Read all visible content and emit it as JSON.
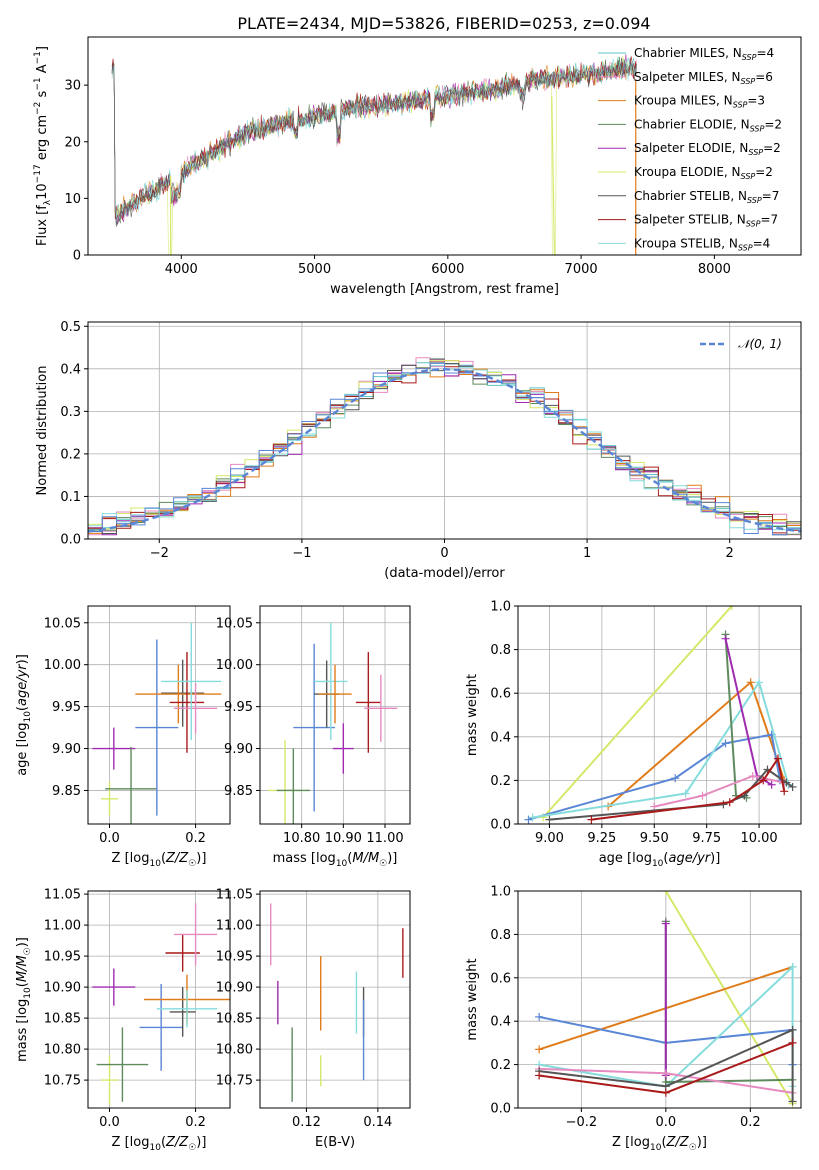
{
  "title": "PLATE=2434, MJD=53826, FIBERID=0253, z=0.094",
  "colors": {
    "Chabrier MILES": "#5cc5c5",
    "Salpeter MILES": "#e58ac0",
    "Kroupa MILES": "#e07c1a",
    "Chabrier ELODIE": "#5e8a5e",
    "Salpeter ELODIE": "#a02ab0",
    "Kroupa ELODIE": "#d6e86a",
    "Chabrier STELIB": "#555555",
    "Salpeter STELIB": "#aa1a1a",
    "Kroupa STELIB": "#86dcdc",
    "Blue extra": "#5a86d6"
  },
  "chart_data": [
    {
      "id": "spectrum",
      "type": "line",
      "title": "PLATE=2434, MJD=53826, FIBERID=0253, z=0.094",
      "xlabel": "wavelength [Angstrom, rest frame]",
      "ylabel": "Flux [f_λ 10^-17 erg cm^-2 s^-1 A^-1]",
      "xlim": [
        3300,
        8650
      ],
      "ylim": [
        0,
        38.5
      ],
      "xticks": [
        4000,
        5000,
        6000,
        7000,
        8000
      ],
      "yticks": [
        0,
        10,
        20,
        30
      ],
      "legend_position": "top-right",
      "legend": [
        {
          "label": "Chabrier MILES",
          "nssp": "4",
          "color": "#5cc5c5"
        },
        {
          "label": "Salpeter MILES",
          "nssp": "6",
          "color": "#e58ac0"
        },
        {
          "label": "Kroupa MILES",
          "nssp": "3",
          "color": "#e07c1a"
        },
        {
          "label": "Chabrier ELODIE",
          "nssp": "2",
          "color": "#5e8a5e"
        },
        {
          "label": "Salpeter ELODIE",
          "nssp": "2",
          "color": "#a02ab0"
        },
        {
          "label": "Kroupa ELODIE",
          "nssp": "2",
          "color": "#d6e86a"
        },
        {
          "label": "Chabrier STELIB",
          "nssp": "7",
          "color": "#555555"
        },
        {
          "label": "Salpeter STELIB",
          "nssp": "7",
          "color": "#aa1a1a"
        },
        {
          "label": "Kroupa STELIB",
          "nssp": "4",
          "color": "#86dcdc"
        }
      ],
      "continuum": {
        "x": [
          3500,
          3700,
          3900,
          4100,
          4300,
          4500,
          4700,
          4900,
          5100,
          5300,
          5500,
          5700,
          5900,
          6100,
          6300,
          6500,
          6700,
          6900,
          7100,
          7300,
          7400
        ],
        "y": [
          7,
          10,
          13,
          16,
          19,
          21.5,
          23,
          24,
          25,
          26,
          26.5,
          27,
          28,
          28.5,
          29,
          30,
          31,
          31.5,
          32,
          33,
          33
        ]
      },
      "features": [
        {
          "series": "Kroupa ELODIE",
          "x": [
            3920,
            3920
          ],
          "y": [
            0,
            14
          ],
          "desc": "drop near 3900"
        },
        {
          "series": "Kroupa ELODIE",
          "x": [
            6780,
            6800
          ],
          "y": [
            28,
            0
          ],
          "desc": "drop near 6790"
        },
        {
          "series": "Kroupa MILES",
          "x": [
            7410,
            7410
          ],
          "y": [
            31,
            0
          ],
          "desc": "cutoff near 7410"
        }
      ]
    },
    {
      "id": "residuals",
      "type": "histogram",
      "xlabel": "(data-model)/error",
      "ylabel": "Normed distribution",
      "xlim": [
        -2.5,
        2.5
      ],
      "ylim": [
        0,
        0.51
      ],
      "xticks": [
        -2,
        -1,
        0,
        1,
        2
      ],
      "yticks": [
        0.0,
        0.1,
        0.2,
        0.3,
        0.4,
        0.5
      ],
      "reference_curve": {
        "label": "𝒩(0, 1)",
        "color": "#5a86d6",
        "style": "dashed"
      },
      "bin_width": 0.1,
      "bin_start": -2.5,
      "series": [
        {
          "name": "Chabrier MILES",
          "color": "#5cc5c5",
          "offset": 0.0
        },
        {
          "name": "Salpeter MILES",
          "color": "#e58ac0",
          "offset": 0.02
        },
        {
          "name": "Kroupa MILES",
          "color": "#e07c1a",
          "offset": -0.02
        },
        {
          "name": "Chabrier ELODIE",
          "color": "#5e8a5e",
          "offset": 0.01
        },
        {
          "name": "Salpeter ELODIE",
          "color": "#a02ab0",
          "offset": -0.01
        },
        {
          "name": "Kroupa ELODIE",
          "color": "#d6e86a",
          "offset": 0.015
        },
        {
          "name": "Chabrier STELIB",
          "color": "#555555",
          "offset": -0.015
        },
        {
          "name": "Salpeter STELIB",
          "color": "#aa1a1a",
          "offset": 0.005
        },
        {
          "name": "Kroupa STELIB",
          "color": "#86dcdc",
          "offset": -0.005
        },
        {
          "name": "",
          "color": "#5a86d6",
          "offset": 0.025
        }
      ]
    },
    {
      "id": "age_vs_Z",
      "type": "errorbar",
      "xlabel": "Z [log10(Z/Z☉)]",
      "ylabel": "age [log10(age/yr)]",
      "xlim": [
        -0.05,
        0.28
      ],
      "ylim": [
        9.81,
        10.07
      ],
      "xticks": [
        0.0,
        0.2
      ],
      "yticks": [
        9.85,
        9.9,
        9.95,
        10.0,
        10.05
      ],
      "points": [
        {
          "x": 0.0,
          "y": 9.84,
          "xerr": 0.02,
          "yerr": 0.02,
          "color": "#d6e86a"
        },
        {
          "x": 0.01,
          "y": 9.9,
          "xerr": 0.05,
          "yerr": 0.025,
          "color": "#a02ab0"
        },
        {
          "x": 0.05,
          "y": 9.852,
          "xerr": 0.06,
          "yerr": 0.05,
          "color": "#5e8a5e"
        },
        {
          "x": 0.11,
          "y": 9.925,
          "xerr": 0.05,
          "yerr": 0.105,
          "color": "#5a86d6"
        },
        {
          "x": 0.17,
          "y": 9.966,
          "xerr": 0.05,
          "yerr": 0.04,
          "color": "#555555"
        },
        {
          "x": 0.16,
          "y": 9.965,
          "xerr": 0.1,
          "yerr": 0.035,
          "color": "#e07c1a"
        },
        {
          "x": 0.18,
          "y": 9.955,
          "xerr": 0.04,
          "yerr": 0.06,
          "color": "#aa1a1a"
        },
        {
          "x": 0.2,
          "y": 9.948,
          "xerr": 0.05,
          "yerr": 0.03,
          "color": "#e58ac0"
        },
        {
          "x": 0.19,
          "y": 9.98,
          "xerr": 0.07,
          "yerr": 0.07,
          "color": "#86dcdc"
        }
      ]
    },
    {
      "id": "age_vs_mass",
      "type": "errorbar",
      "xlabel": "mass [log10(M/M☉)]",
      "ylabel": "",
      "xlim": [
        10.7,
        11.06
      ],
      "ylim": [
        9.81,
        10.07
      ],
      "xticks": [
        10.8,
        10.9,
        11.0
      ],
      "yticks": [
        9.85,
        9.9,
        9.95,
        10.0,
        10.05
      ],
      "points": [
        {
          "x": 10.76,
          "y": 9.85,
          "xerr": 0.04,
          "yerr": 0.06,
          "color": "#d6e86a"
        },
        {
          "x": 10.78,
          "y": 9.85,
          "xerr": 0.04,
          "yerr": 0.05,
          "color": "#5e8a5e"
        },
        {
          "x": 10.83,
          "y": 9.925,
          "xerr": 0.05,
          "yerr": 0.1,
          "color": "#5a86d6"
        },
        {
          "x": 10.86,
          "y": 9.965,
          "xerr": 0.03,
          "yerr": 0.04,
          "color": "#555555"
        },
        {
          "x": 10.87,
          "y": 9.98,
          "xerr": 0.04,
          "yerr": 0.07,
          "color": "#86dcdc"
        },
        {
          "x": 10.88,
          "y": 9.965,
          "xerr": 0.04,
          "yerr": 0.035,
          "color": "#e07c1a"
        },
        {
          "x": 10.9,
          "y": 9.9,
          "xerr": 0.025,
          "yerr": 0.03,
          "color": "#a02ab0"
        },
        {
          "x": 10.96,
          "y": 9.955,
          "xerr": 0.03,
          "yerr": 0.06,
          "color": "#aa1a1a"
        },
        {
          "x": 10.99,
          "y": 9.948,
          "xerr": 0.04,
          "yerr": 0.04,
          "color": "#e58ac0"
        }
      ]
    },
    {
      "id": "weight_vs_age",
      "type": "line",
      "xlabel": "age [log10(age/yr)]",
      "ylabel": "mass weight",
      "xlim": [
        8.85,
        10.2
      ],
      "ylim": [
        0,
        1
      ],
      "xticks": [
        9.0,
        9.25,
        9.5,
        9.75,
        10.0
      ],
      "yticks": [
        0.0,
        0.2,
        0.4,
        0.6,
        0.8,
        1.0
      ],
      "series": [
        {
          "color": "#d6e86a",
          "x": [
            8.97,
            9.87,
            9.9
          ],
          "y": [
            0.03,
            1.0,
            1.05
          ]
        },
        {
          "color": "#e07c1a",
          "x": [
            9.28,
            9.96,
            10.12
          ],
          "y": [
            0.08,
            0.65,
            0.2
          ]
        },
        {
          "color": "#5a86d6",
          "x": [
            8.9,
            9.6,
            9.84,
            10.06,
            10.1
          ],
          "y": [
            0.02,
            0.21,
            0.37,
            0.41,
            0.2
          ]
        },
        {
          "color": "#86dcdc",
          "x": [
            8.92,
            9.65,
            10.0,
            10.14
          ],
          "y": [
            0.03,
            0.14,
            0.65,
            0.18
          ]
        },
        {
          "color": "#5e8a5e",
          "x": [
            9.84,
            9.89,
            9.94
          ],
          "y": [
            0.87,
            0.13,
            0.12
          ]
        },
        {
          "color": "#a02ab0",
          "x": [
            9.84,
            9.99,
            10.06
          ],
          "y": [
            0.85,
            0.22,
            0.18
          ]
        },
        {
          "color": "#e58ac0",
          "x": [
            9.5,
            9.73,
            9.97,
            10.12
          ],
          "y": [
            0.08,
            0.13,
            0.22,
            0.19
          ]
        },
        {
          "color": "#555555",
          "x": [
            9.0,
            9.83,
            9.93,
            10.04,
            10.13,
            10.16
          ],
          "y": [
            0.02,
            0.09,
            0.13,
            0.25,
            0.19,
            0.17
          ]
        },
        {
          "color": "#aa1a1a",
          "x": [
            9.2,
            9.86,
            10.02,
            10.09,
            10.12
          ],
          "y": [
            0.02,
            0.1,
            0.2,
            0.3,
            0.15
          ]
        }
      ]
    },
    {
      "id": "mass_vs_Z",
      "type": "errorbar",
      "xlabel": "Z [log10(Z/Z☉)]",
      "ylabel": "mass [log10(M/M☉)]",
      "xlim": [
        -0.05,
        0.28
      ],
      "ylim": [
        10.705,
        11.055
      ],
      "xticks": [
        0.0,
        0.2
      ],
      "yticks": [
        10.75,
        10.8,
        10.85,
        10.9,
        10.95,
        11.0,
        11.05
      ],
      "points": [
        {
          "x": 0.0,
          "y": 10.75,
          "xerr": 0.02,
          "yerr": 0.04,
          "color": "#d6e86a"
        },
        {
          "x": 0.01,
          "y": 10.9,
          "xerr": 0.05,
          "yerr": 0.03,
          "color": "#a02ab0"
        },
        {
          "x": 0.03,
          "y": 10.775,
          "xerr": 0.06,
          "yerr": 0.06,
          "color": "#5e8a5e"
        },
        {
          "x": 0.12,
          "y": 10.835,
          "xerr": 0.05,
          "yerr": 0.07,
          "color": "#5a86d6"
        },
        {
          "x": 0.17,
          "y": 10.86,
          "xerr": 0.03,
          "yerr": 0.04,
          "color": "#555555"
        },
        {
          "x": 0.18,
          "y": 10.88,
          "xerr": 0.1,
          "yerr": 0.04,
          "color": "#e07c1a"
        },
        {
          "x": 0.17,
          "y": 10.955,
          "xerr": 0.04,
          "yerr": 0.03,
          "color": "#aa1a1a"
        },
        {
          "x": 0.2,
          "y": 10.985,
          "xerr": 0.05,
          "yerr": 0.05,
          "color": "#e58ac0"
        },
        {
          "x": 0.18,
          "y": 10.865,
          "xerr": 0.07,
          "yerr": 0.03,
          "color": "#86dcdc"
        }
      ]
    },
    {
      "id": "mass_vs_EBV",
      "type": "errorbar",
      "xlabel": "E(B-V)",
      "ylabel": "",
      "xlim": [
        0.107,
        0.149
      ],
      "ylim": [
        10.705,
        11.055
      ],
      "xticks": [
        0.12,
        0.14
      ],
      "yticks": [
        10.75,
        10.8,
        10.85,
        10.9,
        10.95,
        11.0,
        11.05
      ],
      "points": [
        {
          "x": 0.11,
          "y": 10.985,
          "yerr": 0.05,
          "color": "#e58ac0"
        },
        {
          "x": 0.112,
          "y": 10.875,
          "yerr": 0.035,
          "color": "#a02ab0"
        },
        {
          "x": 0.116,
          "y": 10.775,
          "yerr": 0.06,
          "color": "#5e8a5e"
        },
        {
          "x": 0.124,
          "y": 10.89,
          "yerr": 0.06,
          "color": "#e07c1a"
        },
        {
          "x": 0.124,
          "y": 10.765,
          "yerr": 0.025,
          "color": "#d6e86a"
        },
        {
          "x": 0.134,
          "y": 10.875,
          "yerr": 0.05,
          "color": "#86dcdc"
        },
        {
          "x": 0.136,
          "y": 10.86,
          "yerr": 0.04,
          "color": "#555555"
        },
        {
          "x": 0.136,
          "y": 10.815,
          "yerr": 0.065,
          "color": "#5a86d6"
        },
        {
          "x": 0.147,
          "y": 10.955,
          "yerr": 0.04,
          "color": "#aa1a1a"
        }
      ]
    },
    {
      "id": "weight_vs_Z",
      "type": "line",
      "xlabel": "Z [log10(Z/Z☉)]",
      "ylabel": "mass weight",
      "xlim": [
        -0.35,
        0.32
      ],
      "ylim": [
        0,
        1
      ],
      "xticks": [
        -0.2,
        0.0,
        0.2
      ],
      "yticks": [
        0.0,
        0.2,
        0.4,
        0.6,
        0.8,
        1.0
      ],
      "series": [
        {
          "color": "#d6e86a",
          "x": [
            0.0,
            0.3
          ],
          "y": [
            1.0,
            0.02
          ]
        },
        {
          "color": "#e07c1a",
          "x": [
            -0.3,
            0.3
          ],
          "y": [
            0.27,
            0.65
          ]
        },
        {
          "color": "#5a86d6",
          "x": [
            -0.3,
            0.0,
            0.3,
            0.3
          ],
          "y": [
            0.42,
            0.3,
            0.36,
            0.2
          ]
        },
        {
          "color": "#86dcdc",
          "x": [
            -0.3,
            0.0,
            0.3,
            0.3
          ],
          "y": [
            0.2,
            0.1,
            0.65,
            0.1
          ]
        },
        {
          "color": "#5e8a5e",
          "x": [
            0.0,
            0.0,
            0.3
          ],
          "y": [
            0.86,
            0.12,
            0.13
          ]
        },
        {
          "color": "#a02ab0",
          "x": [
            0.0,
            0.0
          ],
          "y": [
            0.85,
            0.15
          ]
        },
        {
          "color": "#e58ac0",
          "x": [
            -0.3,
            0.0,
            0.3
          ],
          "y": [
            0.18,
            0.16,
            0.07
          ]
        },
        {
          "color": "#555555",
          "x": [
            -0.3,
            0.0,
            0.3,
            0.3
          ],
          "y": [
            0.17,
            0.1,
            0.36,
            0.03
          ]
        },
        {
          "color": "#aa1a1a",
          "x": [
            -0.3,
            0.0,
            0.3
          ],
          "y": [
            0.15,
            0.07,
            0.3
          ]
        }
      ]
    }
  ]
}
